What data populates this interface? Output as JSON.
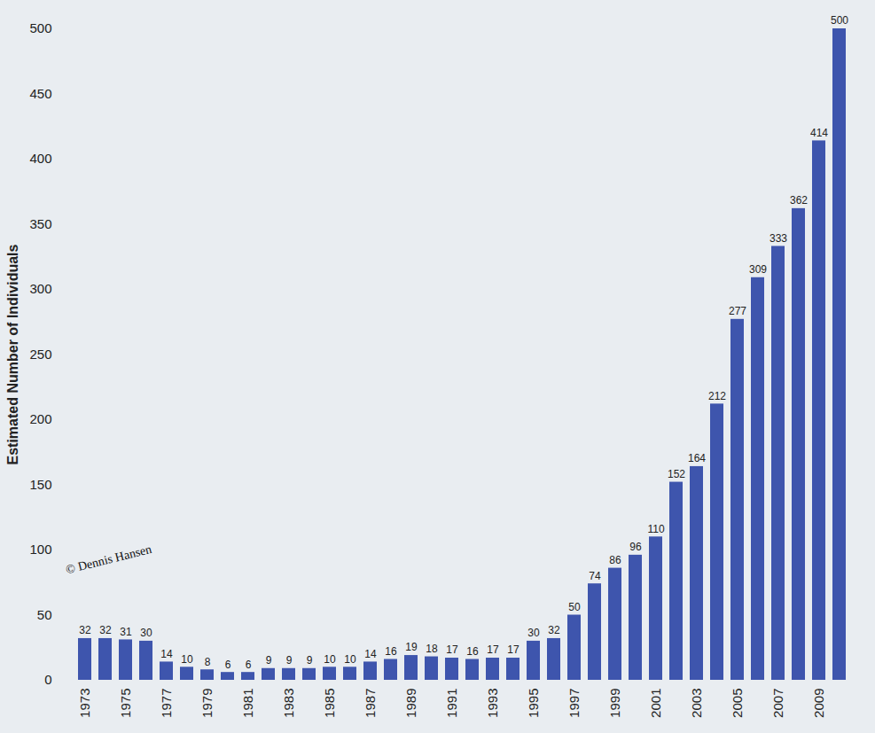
{
  "chart_data": {
    "type": "bar",
    "y_label": "Estimated Number of Individuals",
    "annotations": [
      "© Dennis Hansen"
    ],
    "categories": [
      "1973",
      null,
      "1975",
      null,
      "1977",
      null,
      "1979",
      null,
      "1981",
      null,
      "1983",
      null,
      "1985",
      null,
      "1987",
      null,
      "1989",
      null,
      "1991",
      null,
      "1993",
      null,
      "1995",
      null,
      "1997",
      null,
      "1999",
      null,
      "2001",
      null,
      "2003",
      null,
      "2005",
      null,
      "2007",
      null,
      "2009",
      null
    ],
    "values": [
      32,
      32,
      31,
      30,
      14,
      10,
      8,
      6,
      6,
      9,
      9,
      9,
      10,
      10,
      14,
      16,
      19,
      18,
      17,
      16,
      17,
      17,
      30,
      32,
      50,
      74,
      86,
      96,
      110,
      152,
      164,
      212,
      277,
      309,
      333,
      362,
      414,
      500
    ],
    "color": "#3e55ad",
    "ylim": [
      0,
      500
    ],
    "yticks": [
      0,
      50,
      100,
      150,
      200,
      250,
      300,
      350,
      400,
      450,
      500
    ],
    "grid": false,
    "data_labels": true
  }
}
